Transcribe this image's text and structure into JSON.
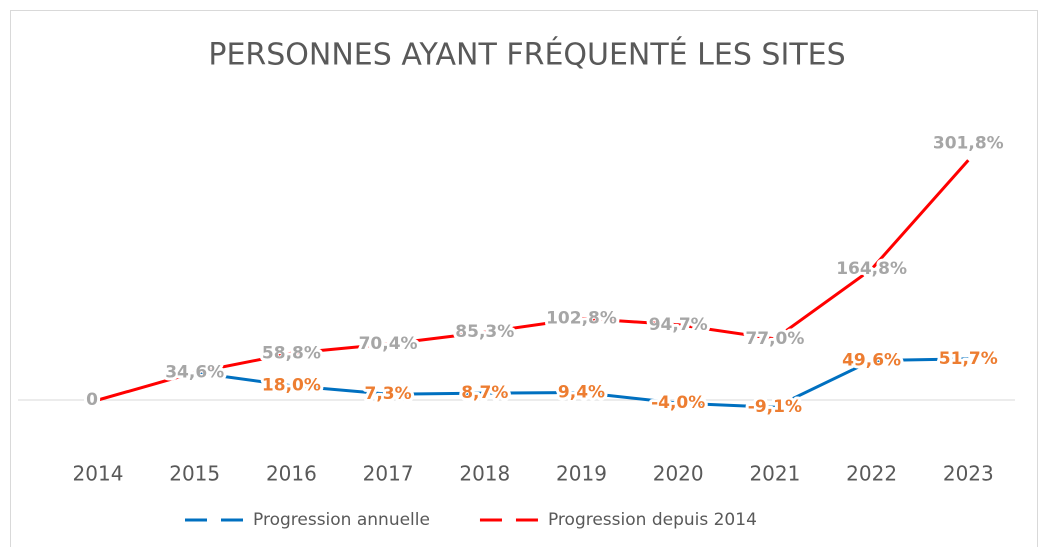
{
  "chart_data": {
    "type": "line",
    "title": "PERSONNES AYANT FRÉQUENTÉ LES SITES",
    "categories": [
      "2014",
      "2015",
      "2016",
      "2017",
      "2018",
      "2019",
      "2020",
      "2021",
      "2022",
      "2023"
    ],
    "series": [
      {
        "name": "Progression annuelle",
        "color": "#0070c0",
        "label_color": "#ed7d31",
        "values": [
          null,
          34.6,
          18.0,
          7.3,
          8.7,
          9.4,
          -4.0,
          -9.1,
          49.6,
          51.7
        ],
        "value_labels": [
          null,
          null,
          "18,0%",
          "7,3%",
          "8,7%",
          "9,4%",
          "-4,0%",
          "-9,1%",
          "49,6%",
          "51,7%"
        ]
      },
      {
        "name": "Progression depuis 2014",
        "color": "#ff0000",
        "label_color": "#a6a6a6",
        "values": [
          0,
          34.6,
          58.8,
          70.4,
          85.3,
          102.8,
          94.7,
          77.0,
          164.8,
          301.8
        ],
        "value_labels": [
          "0",
          "34,6%",
          "58,8%",
          "70,4%",
          "85,3%",
          "102,8%",
          "94,7%",
          "77,0%",
          "164,8%",
          "301,8%"
        ]
      }
    ],
    "ylim": [
      -50,
      350
    ],
    "legend": "bottom"
  }
}
